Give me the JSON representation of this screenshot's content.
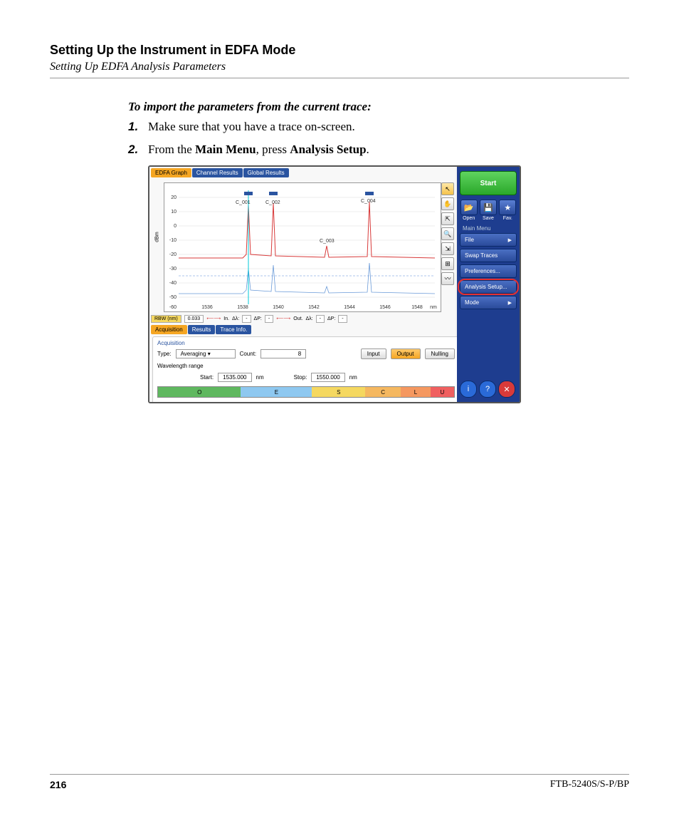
{
  "header": {
    "title": "Setting Up the Instrument in EDFA Mode",
    "subtitle": "Setting Up EDFA Analysis Parameters"
  },
  "section_title": "To import the parameters from the current trace:",
  "steps": [
    {
      "num": "1.",
      "text_plain": "Make sure that you have a trace on-screen."
    },
    {
      "num": "2.",
      "text_before": "From the ",
      "b1": "Main Menu",
      "text_mid": ", press ",
      "b2": "Analysis Setup",
      "text_after": "."
    }
  ],
  "screenshot": {
    "tabs_top": [
      {
        "label": "EDFA Graph",
        "active": true
      },
      {
        "label": "Channel Results",
        "active": false
      },
      {
        "label": "Global Results",
        "active": false
      }
    ],
    "graph": {
      "y_label": "dBm",
      "y_ticks": [
        "20",
        "10",
        "0",
        "-10",
        "-20",
        "-30",
        "-40",
        "-50",
        "-60"
      ],
      "x_ticks": [
        "1536",
        "1538",
        "1540",
        "1542",
        "1544",
        "1546",
        "1548",
        "nm"
      ],
      "peak_labels": [
        "C_001",
        "C_002",
        "C_003",
        "C_004"
      ],
      "peak_positions_pct": [
        30,
        40,
        60,
        75
      ],
      "trace_color": "#d83a3a",
      "trace2_color": "#3a7ad8",
      "marker_color": "#00c8d8",
      "grid_color": "#dddddd",
      "bg": "#ffffff"
    },
    "info_bar": {
      "rbw_label": "RBW (nm)",
      "rbw_val": "0.033",
      "in_label": "In.",
      "dl": "Δλ:",
      "dp": "ΔP:",
      "out_label": "Out.",
      "dash": "-"
    },
    "tabs_mid": [
      {
        "label": "Acquisition",
        "active": true
      },
      {
        "label": "Results",
        "active": false
      },
      {
        "label": "Trace Info.",
        "active": false
      }
    ],
    "acq": {
      "title": "Acquisition",
      "type_label": "Type:",
      "type_val": "Averaging",
      "count_label": "Count:",
      "count_val": "8",
      "input_btn": "Input",
      "output_btn": "Output",
      "nulling_btn": "Nulling",
      "wl_label": "Wavelength range",
      "start_label": "Start:",
      "start_val": "1535.000",
      "stop_label": "Stop:",
      "stop_val": "1550.000",
      "nm": "nm",
      "bands": [
        {
          "label": "O",
          "color": "#5fb85f",
          "width": 28
        },
        {
          "label": "E",
          "color": "#8ec8f0",
          "width": 24
        },
        {
          "label": "S",
          "color": "#f5d860",
          "width": 18
        },
        {
          "label": "C",
          "color": "#f5b860",
          "width": 12
        },
        {
          "label": "L",
          "color": "#f59860",
          "width": 10
        },
        {
          "label": "U",
          "color": "#f06060",
          "width": 8
        }
      ]
    },
    "tool_icons": [
      "↖",
      "✋",
      "⇱",
      "🔍",
      "⇲",
      "⊞",
      "〰"
    ],
    "right": {
      "start": "Start",
      "icons": [
        {
          "glyph": "📂",
          "label": "Open",
          "color": "#f5a623"
        },
        {
          "glyph": "💾",
          "label": "Save",
          "color": "#3a5ac8"
        },
        {
          "glyph": "★",
          "label": "Fav.",
          "color": "#f5c843"
        }
      ],
      "menu_head": "Main Menu",
      "menu": [
        {
          "label": "File",
          "arrow": true
        },
        {
          "label": "Swap Traces",
          "arrow": false
        },
        {
          "label": "Preferences...",
          "arrow": false
        },
        {
          "label": "Analysis Setup...",
          "arrow": false,
          "highlighted": true
        },
        {
          "label": "Mode",
          "arrow": true
        }
      ],
      "bottom": [
        {
          "glyph": "i",
          "color": "#2a6ad8"
        },
        {
          "glyph": "?",
          "color": "#2a6ad8"
        },
        {
          "glyph": "✕",
          "color": "#d83a3a"
        }
      ]
    }
  },
  "footer": {
    "page": "216",
    "doc": "FTB-5240S/S-P/BP"
  }
}
